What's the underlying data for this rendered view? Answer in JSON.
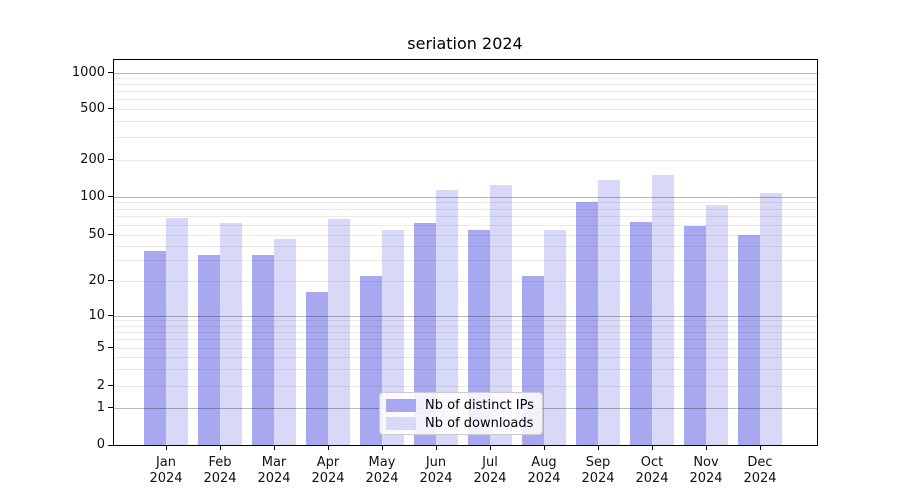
{
  "chart_data": {
    "type": "bar",
    "title": "seriation 2024",
    "categories": [
      "Jan 2024",
      "Feb 2024",
      "Mar 2024",
      "Apr 2024",
      "May 2024",
      "Jun 2024",
      "Jul 2024",
      "Aug 2024",
      "Sep 2024",
      "Oct 2024",
      "Nov 2024",
      "Dec 2024"
    ],
    "series": [
      {
        "name": "Nb of distinct IPs",
        "color": "#a8a8f0",
        "values": [
          36,
          33,
          33,
          16,
          22,
          62,
          54,
          22,
          90,
          63,
          58,
          50
        ]
      },
      {
        "name": "Nb of downloads",
        "color": "#d8d8f8",
        "values": [
          67,
          62,
          46,
          66,
          54,
          112,
          124,
          54,
          135,
          150,
          85,
          106
        ]
      }
    ],
    "yscale": "symlog",
    "yticks": [
      0,
      1,
      2,
      5,
      10,
      20,
      50,
      100,
      200,
      500,
      1000
    ],
    "ylim": [
      0,
      1300
    ],
    "grid": "on",
    "legend_position": "lower center"
  },
  "colors": {
    "background": "#ffffff",
    "grid_major": "rgba(0,0,0,0.28)",
    "grid_minor": "rgba(0,0,0,0.08)",
    "spine": "#000000",
    "text": "#111111",
    "legend_border": "#cccccc",
    "legend_bg": "rgba(255,255,255,0.85)"
  }
}
